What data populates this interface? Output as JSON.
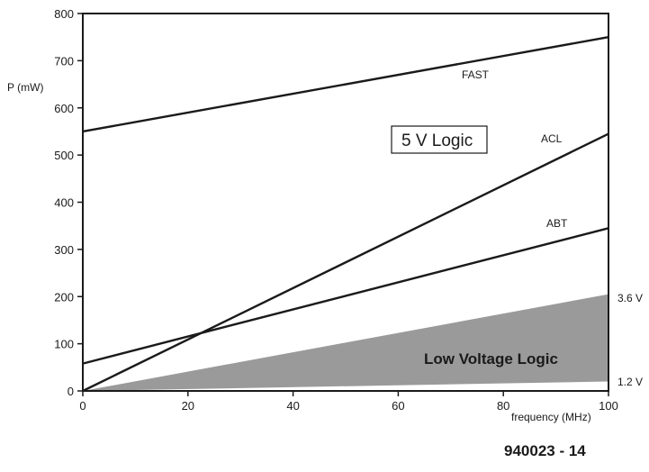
{
  "chart_data": {
    "type": "line",
    "title": "",
    "xlabel": "frequency (MHz)",
    "ylabel": "P (mW)",
    "xlim": [
      0,
      100
    ],
    "ylim": [
      0,
      800
    ],
    "xticks": [
      0,
      20,
      40,
      60,
      80,
      100
    ],
    "yticks": [
      0,
      100,
      200,
      300,
      400,
      500,
      600,
      700,
      800
    ],
    "grid": false,
    "series": [
      {
        "name": "FAST",
        "x": [
          0,
          100
        ],
        "y": [
          550,
          750
        ]
      },
      {
        "name": "ACL",
        "x": [
          0,
          100
        ],
        "y": [
          0,
          545
        ]
      },
      {
        "name": "ABT",
        "x": [
          0,
          100
        ],
        "y": [
          58,
          345
        ]
      }
    ],
    "shaded_region": {
      "label": "Low Voltage Logic",
      "color": "#9a9a9a",
      "lower": {
        "x": [
          0,
          100
        ],
        "y": [
          0,
          20
        ]
      },
      "upper": {
        "x": [
          0,
          100
        ],
        "y": [
          0,
          205
        ]
      },
      "upper_label": "3.6 V",
      "lower_label": "1.2 V"
    },
    "annotations": {
      "region_5v": "5 V Logic"
    },
    "figure_number": "940023 - 14"
  }
}
